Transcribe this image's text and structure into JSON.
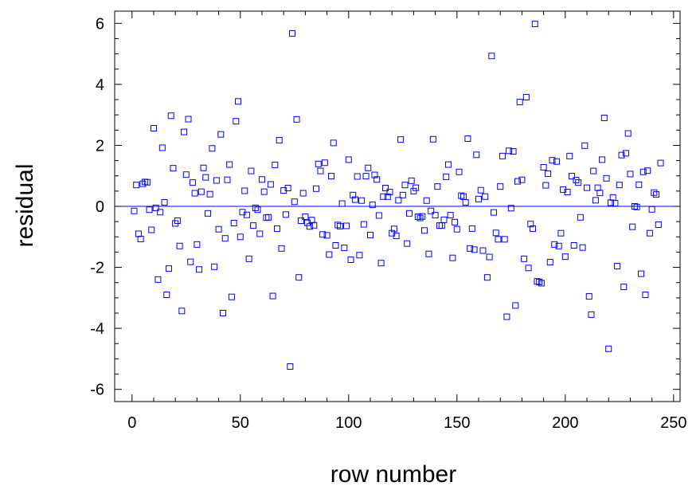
{
  "chart_data": {
    "type": "scatter",
    "xlabel": "row number",
    "ylabel": "residual",
    "xlim": [
      -8,
      253
    ],
    "ylim": [
      -6.4,
      6.4
    ],
    "xticks": [
      0,
      50,
      100,
      150,
      200,
      250
    ],
    "xtick_labels": [
      "0",
      "50",
      "100",
      "150",
      "200",
      "250"
    ],
    "yticks": [
      -6,
      -4,
      -2,
      0,
      2,
      4,
      6
    ],
    "ytick_labels": [
      "-6",
      "-4",
      "-2",
      "0",
      "2",
      "4",
      "6"
    ],
    "marker": "open-square",
    "marker_color": "#0000ff",
    "zero_line_color": "#0000ff",
    "grid": false,
    "points": [
      [
        1,
        -0.15
      ],
      [
        2,
        0.7
      ],
      [
        3,
        -0.9
      ],
      [
        4,
        -1.07
      ],
      [
        5,
        0.74
      ],
      [
        6,
        0.8
      ],
      [
        7,
        0.79
      ],
      [
        8,
        -0.11
      ],
      [
        9,
        -0.77
      ],
      [
        10,
        2.56
      ],
      [
        11,
        -0.05
      ],
      [
        12,
        -2.4
      ],
      [
        13,
        -0.19
      ],
      [
        14,
        1.92
      ],
      [
        15,
        0.13
      ],
      [
        16,
        -2.9
      ],
      [
        17,
        -2.04
      ],
      [
        18,
        2.97
      ],
      [
        19,
        1.25
      ],
      [
        20,
        -0.56
      ],
      [
        21,
        -0.47
      ],
      [
        22,
        -1.3
      ],
      [
        23,
        -3.43
      ],
      [
        24,
        2.44
      ],
      [
        25,
        1.04
      ],
      [
        26,
        2.86
      ],
      [
        27,
        -1.82
      ],
      [
        28,
        0.78
      ],
      [
        29,
        0.43
      ],
      [
        30,
        -1.25
      ],
      [
        31,
        -2.07
      ],
      [
        32,
        0.48
      ],
      [
        33,
        1.26
      ],
      [
        34,
        0.95
      ],
      [
        35,
        -0.23
      ],
      [
        36,
        0.4
      ],
      [
        37,
        1.9
      ],
      [
        38,
        -1.98
      ],
      [
        39,
        0.85
      ],
      [
        40,
        -0.75
      ],
      [
        41,
        2.36
      ],
      [
        42,
        -3.5
      ],
      [
        43,
        -1.05
      ],
      [
        44,
        0.87
      ],
      [
        45,
        1.37
      ],
      [
        46,
        -2.97
      ],
      [
        47,
        -0.55
      ],
      [
        48,
        2.79
      ],
      [
        49,
        3.44
      ],
      [
        50,
        -1.0
      ],
      [
        51,
        -0.19
      ],
      [
        52,
        0.51
      ],
      [
        53,
        -0.28
      ],
      [
        54,
        -1.72
      ],
      [
        55,
        1.16
      ],
      [
        56,
        -0.63
      ],
      [
        57,
        -0.05
      ],
      [
        58,
        -0.11
      ],
      [
        59,
        -0.9
      ],
      [
        60,
        0.88
      ],
      [
        61,
        0.48
      ],
      [
        62,
        -0.37
      ],
      [
        63,
        -0.36
      ],
      [
        64,
        0.72
      ],
      [
        65,
        -2.94
      ],
      [
        66,
        1.36
      ],
      [
        67,
        -0.73
      ],
      [
        68,
        2.17
      ],
      [
        69,
        -1.38
      ],
      [
        70,
        0.52
      ],
      [
        71,
        -0.27
      ],
      [
        72,
        0.6
      ],
      [
        73,
        -5.25
      ],
      [
        74,
        5.67
      ],
      [
        75,
        0.15
      ],
      [
        76,
        2.85
      ],
      [
        77,
        -2.33
      ],
      [
        78,
        -0.47
      ],
      [
        79,
        0.43
      ],
      [
        80,
        -0.34
      ],
      [
        81,
        -0.54
      ],
      [
        82,
        -0.66
      ],
      [
        83,
        -0.45
      ],
      [
        84,
        -0.62
      ],
      [
        85,
        0.58
      ],
      [
        86,
        1.39
      ],
      [
        87,
        1.16
      ],
      [
        88,
        -0.92
      ],
      [
        89,
        1.43
      ],
      [
        90,
        -0.95
      ],
      [
        91,
        -1.58
      ],
      [
        92,
        0.99
      ],
      [
        93,
        2.08
      ],
      [
        94,
        -1.28
      ],
      [
        95,
        -0.61
      ],
      [
        96,
        -0.65
      ],
      [
        97,
        0.09
      ],
      [
        98,
        -1.36
      ],
      [
        99,
        -0.64
      ],
      [
        100,
        1.53
      ],
      [
        101,
        -1.75
      ],
      [
        102,
        0.37
      ],
      [
        103,
        0.22
      ],
      [
        104,
        0.98
      ],
      [
        105,
        -1.6
      ],
      [
        106,
        0.19
      ],
      [
        107,
        -0.59
      ],
      [
        108,
        0.99
      ],
      [
        109,
        1.26
      ],
      [
        110,
        -0.94
      ],
      [
        111,
        0.05
      ],
      [
        112,
        1.03
      ],
      [
        113,
        0.88
      ],
      [
        114,
        -0.3
      ],
      [
        115,
        -1.86
      ],
      [
        116,
        0.32
      ],
      [
        117,
        0.6
      ],
      [
        118,
        0.32
      ],
      [
        119,
        0.47
      ],
      [
        120,
        -0.88
      ],
      [
        121,
        -0.74
      ],
      [
        122,
        -0.97
      ],
      [
        123,
        0.2
      ],
      [
        124,
        2.19
      ],
      [
        125,
        0.37
      ],
      [
        126,
        0.7
      ],
      [
        127,
        -1.22
      ],
      [
        128,
        -0.23
      ],
      [
        129,
        0.84
      ],
      [
        130,
        0.5
      ],
      [
        131,
        0.61
      ],
      [
        132,
        -0.34
      ],
      [
        133,
        -0.38
      ],
      [
        134,
        -0.33
      ],
      [
        135,
        -0.79
      ],
      [
        136,
        0.19
      ],
      [
        137,
        -1.56
      ],
      [
        138,
        -0.15
      ],
      [
        139,
        2.2
      ],
      [
        140,
        -0.29
      ],
      [
        141,
        0.65
      ],
      [
        142,
        -0.63
      ],
      [
        143,
        -0.63
      ],
      [
        144,
        -0.44
      ],
      [
        145,
        0.97
      ],
      [
        146,
        1.37
      ],
      [
        147,
        -0.29
      ],
      [
        148,
        -1.69
      ],
      [
        149,
        -0.52
      ],
      [
        150,
        -0.75
      ],
      [
        151,
        1.13
      ],
      [
        152,
        0.35
      ],
      [
        153,
        0.32
      ],
      [
        154,
        0.13
      ],
      [
        155,
        2.22
      ],
      [
        156,
        -1.38
      ],
      [
        157,
        -0.73
      ],
      [
        158,
        -1.42
      ],
      [
        159,
        1.69
      ],
      [
        160,
        0.24
      ],
      [
        161,
        0.53
      ],
      [
        162,
        -1.45
      ],
      [
        163,
        0.32
      ],
      [
        164,
        -2.33
      ],
      [
        165,
        -1.66
      ],
      [
        166,
        4.93
      ],
      [
        167,
        -0.2
      ],
      [
        168,
        -0.87
      ],
      [
        169,
        -1.08
      ],
      [
        170,
        0.65
      ],
      [
        171,
        1.65
      ],
      [
        172,
        -1.08
      ],
      [
        173,
        -3.62
      ],
      [
        174,
        1.82
      ],
      [
        175,
        -0.06
      ],
      [
        176,
        1.8
      ],
      [
        177,
        -3.25
      ],
      [
        178,
        0.82
      ],
      [
        179,
        3.42
      ],
      [
        180,
        0.87
      ],
      [
        181,
        -1.72
      ],
      [
        182,
        3.58
      ],
      [
        183,
        -2.02
      ],
      [
        184,
        -0.58
      ],
      [
        185,
        -0.73
      ],
      [
        186,
        5.98
      ],
      [
        187,
        -2.46
      ],
      [
        188,
        -2.48
      ],
      [
        189,
        -2.52
      ],
      [
        190,
        1.28
      ],
      [
        191,
        0.69
      ],
      [
        192,
        1.07
      ],
      [
        193,
        -1.83
      ],
      [
        194,
        1.51
      ],
      [
        195,
        -1.25
      ],
      [
        196,
        1.47
      ],
      [
        197,
        -1.3
      ],
      [
        198,
        -0.88
      ],
      [
        199,
        0.55
      ],
      [
        200,
        -1.65
      ],
      [
        201,
        0.47
      ],
      [
        202,
        1.65
      ],
      [
        203,
        0.99
      ],
      [
        204,
        -1.28
      ],
      [
        205,
        0.86
      ],
      [
        206,
        0.78
      ],
      [
        207,
        -0.36
      ],
      [
        208,
        -1.35
      ],
      [
        209,
        1.99
      ],
      [
        210,
        0.61
      ],
      [
        211,
        -2.95
      ],
      [
        212,
        -3.55
      ],
      [
        213,
        1.16
      ],
      [
        214,
        0.2
      ],
      [
        215,
        0.61
      ],
      [
        216,
        0.44
      ],
      [
        217,
        1.53
      ],
      [
        218,
        2.9
      ],
      [
        219,
        0.92
      ],
      [
        220,
        -4.67
      ],
      [
        221,
        0.12
      ],
      [
        222,
        0.29
      ],
      [
        223,
        0.1
      ],
      [
        224,
        -1.96
      ],
      [
        225,
        0.7
      ],
      [
        226,
        1.68
      ],
      [
        227,
        -2.64
      ],
      [
        228,
        1.74
      ],
      [
        229,
        2.39
      ],
      [
        230,
        1.06
      ],
      [
        231,
        -0.67
      ],
      [
        232,
        0.0
      ],
      [
        233,
        -0.02
      ],
      [
        234,
        0.71
      ],
      [
        235,
        -2.21
      ],
      [
        236,
        1.13
      ],
      [
        237,
        -2.9
      ],
      [
        238,
        1.17
      ],
      [
        239,
        -0.88
      ],
      [
        240,
        -0.1
      ],
      [
        241,
        0.45
      ],
      [
        242,
        0.39
      ],
      [
        243,
        -0.6
      ],
      [
        244,
        1.42
      ]
    ]
  }
}
